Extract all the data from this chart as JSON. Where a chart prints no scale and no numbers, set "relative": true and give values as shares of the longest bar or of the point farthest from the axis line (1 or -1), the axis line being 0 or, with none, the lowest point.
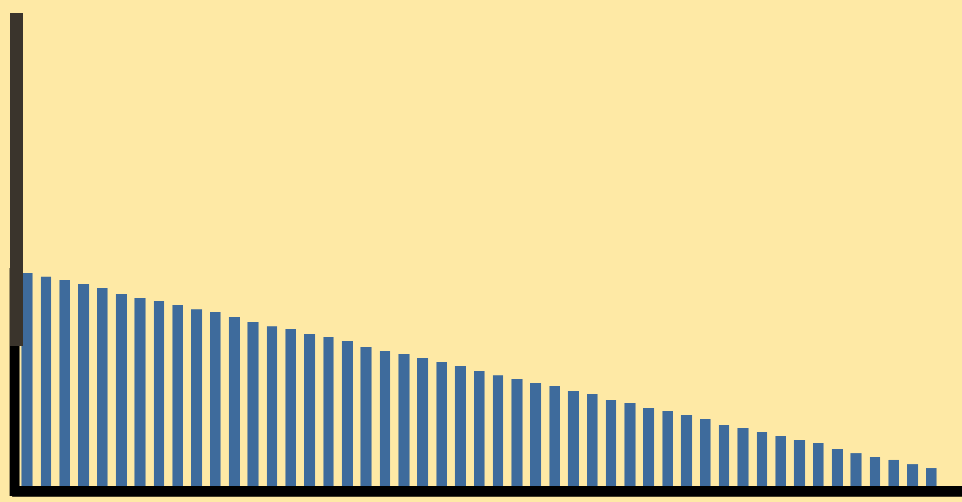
{
  "chart_data": {
    "type": "bar",
    "relative": true,
    "categories": [
      null,
      null,
      null,
      null,
      null,
      null,
      null,
      null,
      null,
      null,
      null,
      null,
      null,
      null,
      null,
      null,
      null,
      null,
      null,
      null,
      null,
      null,
      null,
      null,
      null,
      null,
      null,
      null,
      null,
      null,
      null,
      null,
      null,
      null,
      null,
      null,
      null,
      null,
      null,
      null,
      null,
      null,
      null,
      null,
      null,
      null,
      null,
      null,
      null
    ],
    "values": [
      1,
      0.981,
      0.964,
      0.948,
      0.929,
      0.903,
      0.886,
      0.87,
      0.851,
      0.834,
      0.818,
      0.799,
      0.773,
      0.756,
      0.74,
      0.721,
      0.705,
      0.688,
      0.662,
      0.643,
      0.627,
      0.61,
      0.591,
      0.575,
      0.549,
      0.532,
      0.513,
      0.497,
      0.481,
      0.461,
      0.445,
      0.419,
      0.403,
      0.383,
      0.367,
      0.351,
      0.331,
      0.305,
      0.289,
      0.273,
      0.253,
      0.237,
      0.221,
      0.195,
      0.175,
      0.159,
      0.143,
      0.123,
      0.107
    ],
    "color": "#3e6b9c",
    "grid": false,
    "legend": false
  }
}
